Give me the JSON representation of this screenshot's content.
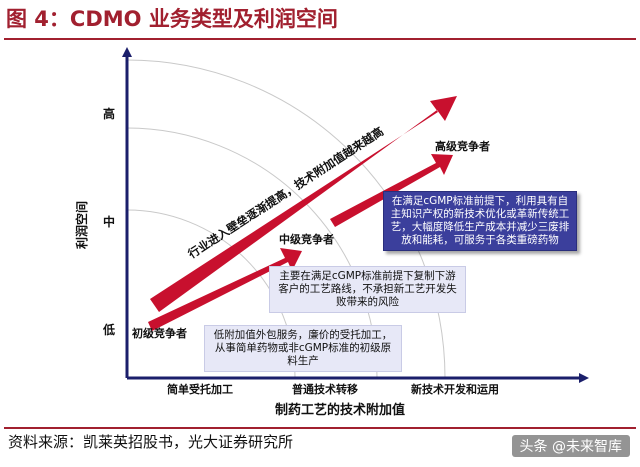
{
  "figure": {
    "title": "图 4：CDMO 业务类型及利润空间"
  },
  "axes": {
    "y_label": "利润空间",
    "y_ticks": [
      "高",
      "中",
      "低"
    ],
    "x_label": "制药工艺的技术附加值",
    "x_ticks": [
      "简单受托加工",
      "普通技术转移",
      "新技术开发和运用"
    ]
  },
  "trend_label": "行业进入壁垒逐渐提高，技术附加值越来越高",
  "competitors": [
    {
      "label": "初级竞争者",
      "description": "低附加值外包服务，廉价的受托加工，从事简单药物或非cGMP标准的初级原料生产"
    },
    {
      "label": "中级竞争者",
      "description": "主要在满足cGMP标准前提下复制下游客户的工艺路线，不承担新工艺开发失败带来的风险"
    },
    {
      "label": "高级竞争者",
      "description": "在满足cGMP标准前提下，利用具有自主知识产权的新技术优化或革新传统工艺，大幅度降低生产成本并减少三废排放和能耗，可服务于各类重磅药物"
    }
  ],
  "footer": {
    "source": "资料来源：凯莱英招股书，光大证券研究所",
    "watermark": "头条 @未来智库"
  },
  "colors": {
    "title": "#a1202f",
    "axis": "#1b1f6b",
    "arrow": "#c8102e",
    "box_light": "#e7e8f7",
    "box_dark": "#3b3f9c",
    "guide": "#c9c9c9"
  }
}
